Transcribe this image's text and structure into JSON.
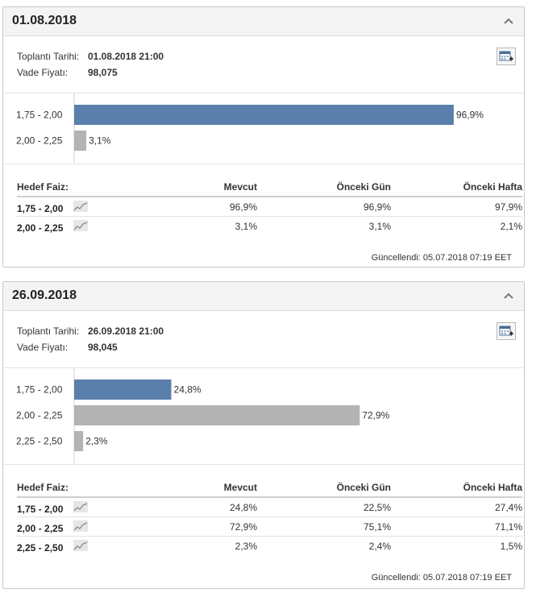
{
  "meta_labels": {
    "meeting": "Toplantı Tarihi:",
    "price": "Vade Fiyatı:"
  },
  "table_headers": {
    "target": "Hedef Faiz:",
    "current": "Mevcut",
    "prev_day": "Önceki Gün",
    "prev_week": "Önceki Hafta"
  },
  "updated_text": "Güncellendi: 05.07.2018 07:19 EET",
  "colors": {
    "highlight_bar": "#5a7fab",
    "other_bar": "#b3b3b3",
    "header_bg": "#f4f4f4"
  },
  "icons": [
    "chevron-up-icon",
    "calendar-add-icon",
    "sparkline-icon"
  ],
  "panels": [
    {
      "title": "01.08.2018",
      "meeting_value": "01.08.2018 21:00",
      "price_value": "98,075",
      "rows": [
        {
          "range": "1,75 - 2,00",
          "current": "96,9%",
          "prev_day": "96,9%",
          "prev_week": "97,9%"
        },
        {
          "range": "2,00 - 2,25",
          "current": "3,1%",
          "prev_day": "3,1%",
          "prev_week": "2,1%"
        }
      ]
    },
    {
      "title": "26.09.2018",
      "meeting_value": "26.09.2018 21:00",
      "price_value": "98,045",
      "rows": [
        {
          "range": "1,75 - 2,00",
          "current": "24,8%",
          "prev_day": "22,5%",
          "prev_week": "27,4%"
        },
        {
          "range": "2,00 - 2,25",
          "current": "72,9%",
          "prev_day": "75,1%",
          "prev_week": "71,1%"
        },
        {
          "range": "2,25 - 2,50",
          "current": "2,3%",
          "prev_day": "2,4%",
          "prev_week": "1,5%"
        }
      ]
    }
  ],
  "chart_data": [
    {
      "type": "bar",
      "orientation": "horizontal",
      "categories": [
        "1,75 - 2,00",
        "2,00 - 2,25"
      ],
      "values": [
        96.9,
        3.1
      ],
      "value_labels": [
        "96,9%",
        "3,1%"
      ],
      "highlight_index": 0,
      "xlim": [
        0,
        100
      ]
    },
    {
      "type": "bar",
      "orientation": "horizontal",
      "categories": [
        "1,75 - 2,00",
        "2,00 - 2,25",
        "2,25 - 2,50"
      ],
      "values": [
        24.8,
        72.9,
        2.3
      ],
      "value_labels": [
        "24,8%",
        "72,9%",
        "2,3%"
      ],
      "highlight_index": 0,
      "xlim": [
        0,
        100
      ]
    }
  ]
}
